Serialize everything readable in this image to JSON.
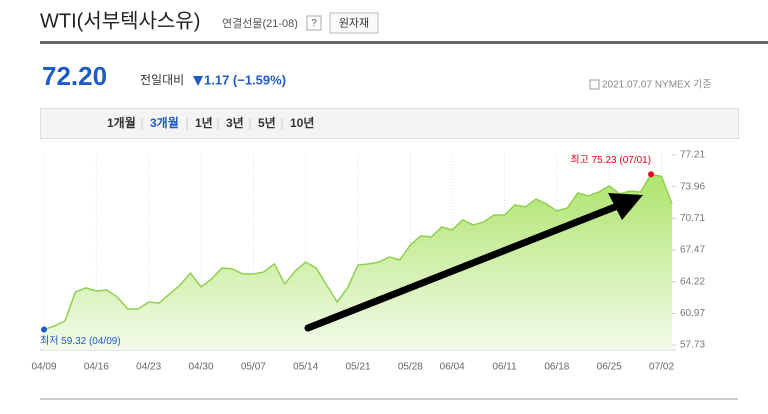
{
  "header": {
    "title": "WTI(서부텍사스유)",
    "subtitle": "연결선물(21-08)",
    "help": "?",
    "button": "원자재"
  },
  "quote": {
    "price": "72.20",
    "change_caption": "전일대비",
    "change": "1.17 (−1.59%)",
    "footnote": "2021.07.07 NYMEX 기준"
  },
  "tabs": [
    "1개월",
    "3개월",
    "1년",
    "3년",
    "5년",
    "10년"
  ],
  "selected_tab": 1,
  "chart_data": {
    "type": "area",
    "categories": [
      "04/09",
      null,
      null,
      null,
      null,
      "04/16",
      null,
      null,
      null,
      null,
      "04/23",
      null,
      null,
      null,
      null,
      "04/30",
      null,
      null,
      null,
      null,
      "05/07",
      null,
      null,
      null,
      null,
      "05/14",
      null,
      null,
      null,
      null,
      "05/21",
      null,
      null,
      null,
      null,
      "05/28",
      null,
      null,
      null,
      "06/04",
      null,
      null,
      null,
      null,
      "06/11",
      null,
      null,
      null,
      null,
      "06/18",
      null,
      null,
      null,
      null,
      "06/25",
      null,
      null,
      null,
      null,
      "07/02",
      null
    ],
    "values": [
      59.32,
      59.68,
      60.19,
      63.17,
      63.58,
      63.27,
      63.37,
      62.65,
      61.42,
      61.42,
      62.14,
      62.04,
      62.96,
      63.88,
      65.11,
      63.68,
      64.5,
      65.63,
      65.53,
      65.01,
      65.01,
      65.22,
      66.04,
      63.99,
      65.32,
      66.24,
      65.63,
      63.88,
      62.14,
      63.58,
      65.94,
      66.04,
      66.24,
      66.76,
      66.45,
      67.99,
      68.91,
      68.81,
      69.83,
      69.53,
      70.55,
      70.04,
      70.35,
      71.06,
      71.06,
      72.09,
      71.88,
      72.7,
      72.19,
      71.47,
      71.78,
      73.32,
      73.01,
      73.42,
      74.04,
      73.22,
      73.52,
      73.42,
      75.23,
      75.02,
      72.2
    ],
    "color": "#8fd14f",
    "ylim": [
      57.73,
      77.21
    ],
    "yticks": [
      57.73,
      60.97,
      64.22,
      67.47,
      70.71,
      73.96,
      77.21
    ],
    "high_index": 58,
    "high_label": "최고 75.23 (07/01)",
    "high_color": "#e8001c",
    "low_index": 0,
    "low_label": "최저 59.32 (04/09)",
    "low_color": "#1f5bc6"
  }
}
